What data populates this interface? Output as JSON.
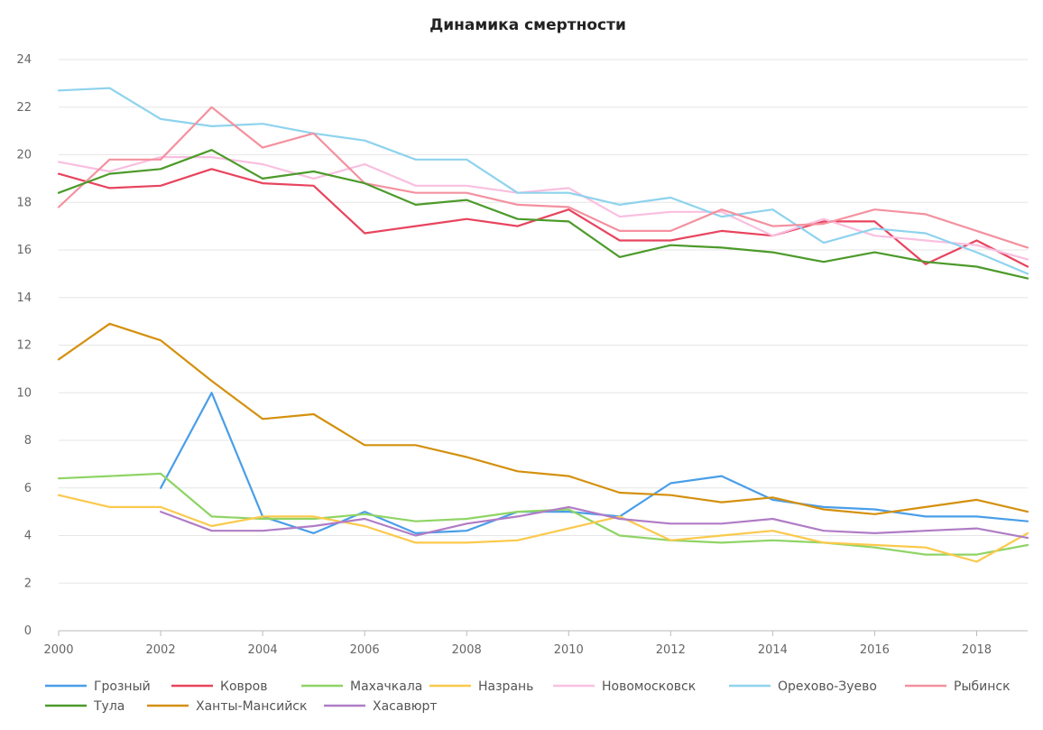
{
  "chart_data": {
    "type": "line",
    "title": "Динамика смертности",
    "xlabel": "",
    "ylabel": "",
    "x": [
      2000,
      2001,
      2002,
      2003,
      2004,
      2005,
      2006,
      2007,
      2008,
      2009,
      2010,
      2011,
      2012,
      2013,
      2014,
      2015,
      2016,
      2017,
      2018,
      2019
    ],
    "x_ticks": [
      "2000",
      "2002",
      "2004",
      "2006",
      "2008",
      "2010",
      "2012",
      "2014",
      "2016",
      "2018"
    ],
    "y_ticks": [
      "0",
      "2",
      "4",
      "6",
      "8",
      "10",
      "12",
      "14",
      "16",
      "18",
      "20",
      "22",
      "24"
    ],
    "xlim": [
      2000,
      2019
    ],
    "ylim": [
      0,
      24
    ],
    "grid": "horizontal",
    "legend_position": "bottom",
    "series": [
      {
        "name": "Грозный",
        "color": "#4a9ee8",
        "values": [
          null,
          null,
          6.0,
          10.0,
          4.8,
          4.1,
          5.0,
          4.1,
          4.2,
          5.0,
          5.0,
          4.8,
          6.2,
          6.5,
          5.5,
          5.2,
          5.1,
          4.8,
          4.8,
          4.6
        ]
      },
      {
        "name": "Ковров",
        "color": "#e8445e",
        "values": [
          19.2,
          18.6,
          18.7,
          19.4,
          18.8,
          18.7,
          16.7,
          17.0,
          17.3,
          17.0,
          17.7,
          16.4,
          16.4,
          16.8,
          16.6,
          17.2,
          17.2,
          15.4,
          16.4,
          15.3
        ]
      },
      {
        "name": "Махачкала",
        "color": "#8fd465",
        "values": [
          6.4,
          6.5,
          6.6,
          4.8,
          4.7,
          4.7,
          4.9,
          4.6,
          4.7,
          5.0,
          5.1,
          4.0,
          3.8,
          3.7,
          3.8,
          3.7,
          3.5,
          3.2,
          3.2,
          3.6
        ]
      },
      {
        "name": "Назрань",
        "color": "#fbc94b",
        "values": [
          5.7,
          5.2,
          5.2,
          4.4,
          4.8,
          4.8,
          4.4,
          3.7,
          3.7,
          3.8,
          4.3,
          4.8,
          3.8,
          4.0,
          4.2,
          3.7,
          3.6,
          3.5,
          2.9,
          4.1
        ]
      },
      {
        "name": "Новомосковск",
        "color": "#f9bfe0",
        "values": [
          19.7,
          19.3,
          19.9,
          19.9,
          19.6,
          19.0,
          19.6,
          18.7,
          18.7,
          18.4,
          18.6,
          17.4,
          17.6,
          17.6,
          16.6,
          17.3,
          16.6,
          16.4,
          16.2,
          15.6
        ]
      },
      {
        "name": "Орехово-Зуево",
        "color": "#8ed3ee",
        "values": [
          22.7,
          22.8,
          21.5,
          21.2,
          21.3,
          20.9,
          20.6,
          19.8,
          19.8,
          18.4,
          18.4,
          17.9,
          18.2,
          17.4,
          17.7,
          16.3,
          16.9,
          16.7,
          15.9,
          15.0
        ]
      },
      {
        "name": "Рыбинск",
        "color": "#f4919f",
        "values": [
          17.8,
          19.8,
          19.8,
          22.0,
          20.3,
          20.9,
          18.8,
          18.4,
          18.4,
          17.9,
          17.8,
          16.8,
          16.8,
          17.7,
          17.0,
          17.1,
          17.7,
          17.5,
          16.8,
          16.1
        ]
      },
      {
        "name": "Тула",
        "color": "#4c9a2a",
        "values": [
          18.4,
          19.2,
          19.4,
          20.2,
          19.0,
          19.3,
          18.8,
          17.9,
          18.1,
          17.3,
          17.2,
          15.7,
          16.2,
          16.1,
          15.9,
          15.5,
          15.9,
          15.5,
          15.3,
          14.8
        ]
      },
      {
        "name": "Ханты-Мансийск",
        "color": "#d4900e",
        "values": [
          11.4,
          12.9,
          12.2,
          10.5,
          8.9,
          9.1,
          7.8,
          7.8,
          7.3,
          6.7,
          6.5,
          5.8,
          5.7,
          5.4,
          5.6,
          5.1,
          4.9,
          5.2,
          5.5,
          5.0
        ]
      },
      {
        "name": "Хасавюрт",
        "color": "#b07cc6",
        "values": [
          null,
          null,
          5.0,
          4.2,
          4.2,
          4.4,
          4.7,
          4.0,
          4.5,
          4.8,
          5.2,
          4.7,
          4.5,
          4.5,
          4.7,
          4.2,
          4.1,
          4.2,
          4.3,
          3.9
        ]
      }
    ]
  }
}
